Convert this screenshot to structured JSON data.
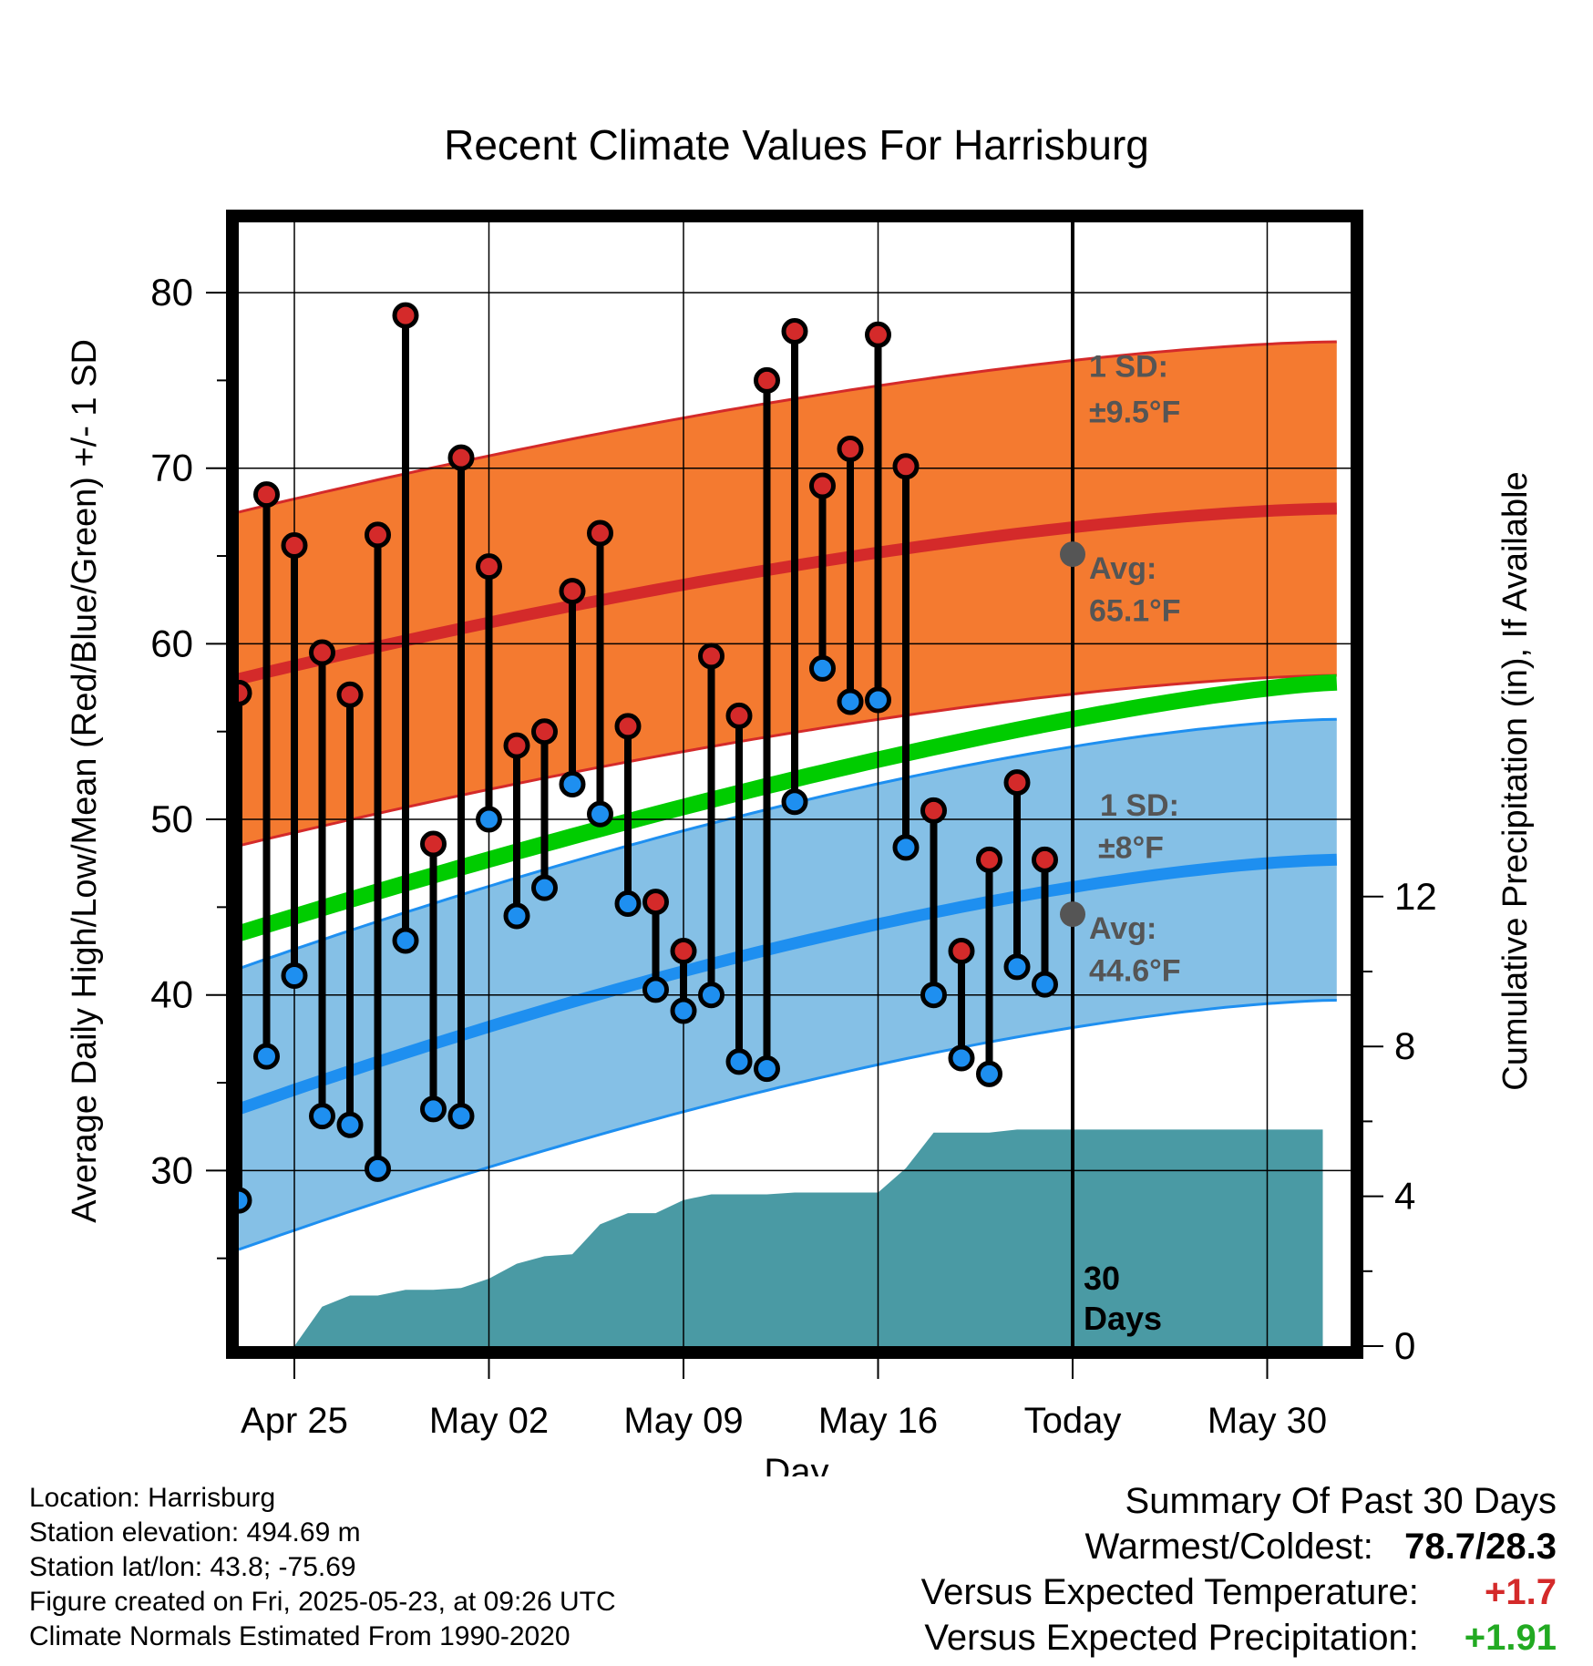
{
  "chart_data": {
    "type": "line",
    "title": "Recent Climate Values For Harrisburg",
    "xlabel": "Day",
    "ylabel": "Average Daily High/Low/Mean (Red/Blue/Green) +/- 1 SD",
    "y2label": "Cumulative Precipitation (in), If Available",
    "ylim": [
      20,
      84
    ],
    "y2lim": [
      0,
      30
    ],
    "yticks": [
      30,
      40,
      50,
      60,
      70,
      80
    ],
    "y2ticks": [
      0,
      4,
      8,
      12
    ],
    "xlim": [
      -2.0,
      38.0
    ],
    "xticks": [
      {
        "day": 0,
        "label": "Apr 25"
      },
      {
        "day": 7,
        "label": "May 02"
      },
      {
        "day": 14,
        "label": "May 09"
      },
      {
        "day": 21,
        "label": "May 16"
      },
      {
        "day": 28,
        "label": "Today"
      },
      {
        "day": 35,
        "label": "May 30"
      }
    ],
    "grid": true,
    "days": [
      -2,
      -1,
      0,
      1,
      2,
      3,
      4,
      5,
      6,
      7,
      8,
      9,
      10,
      11,
      12,
      13,
      14,
      15,
      16,
      17,
      18,
      19,
      20,
      21,
      22,
      23,
      24,
      25,
      26,
      27
    ],
    "daily_high": [
      57.2,
      68.5,
      65.6,
      59.5,
      57.1,
      66.2,
      78.7,
      48.6,
      70.6,
      64.4,
      54.2,
      55.0,
      63.0,
      66.3,
      55.3,
      45.3,
      42.5,
      59.3,
      55.9,
      75.0,
      77.8,
      69.0,
      71.1,
      77.6,
      70.1,
      50.5,
      42.5,
      47.7,
      52.1,
      47.7
    ],
    "daily_low": [
      28.3,
      36.5,
      41.1,
      33.1,
      32.6,
      30.1,
      43.1,
      33.5,
      33.1,
      50.0,
      44.5,
      46.1,
      52.0,
      50.3,
      45.2,
      40.3,
      39.1,
      40.0,
      36.2,
      35.8,
      51.0,
      58.6,
      56.7,
      56.8,
      48.4,
      40.0,
      36.4,
      35.5,
      41.6,
      40.6
    ],
    "normal_high": {
      "start": 58.0,
      "today": 65.1,
      "end": 67.7,
      "sd": 9.5
    },
    "normal_low": {
      "start": 33.5,
      "today": 44.6,
      "end": 47.7,
      "sd": 8.0
    },
    "normal_mean": {
      "start": 43.5,
      "end": 57.8
    },
    "precip_days": [
      -2,
      0,
      1,
      2,
      3,
      4,
      5,
      6,
      7,
      8,
      9,
      10,
      11,
      12,
      13,
      14,
      15,
      16,
      17,
      18,
      19,
      20,
      21,
      22,
      23,
      24,
      25,
      26,
      27,
      28,
      37
    ],
    "cum_precip": [
      0,
      0,
      1.05,
      1.35,
      1.35,
      1.5,
      1.5,
      1.55,
      1.8,
      2.2,
      2.4,
      2.45,
      3.25,
      3.55,
      3.55,
      3.9,
      4.05,
      4.05,
      4.05,
      4.1,
      4.1,
      4.1,
      4.1,
      4.75,
      5.7,
      5.7,
      5.7,
      5.78,
      5.78,
      5.78,
      5.78
    ],
    "annotations": {
      "high_sd_label": "1 SD:",
      "high_sd_value": "±9.5°F",
      "high_avg_label": "Avg:",
      "high_avg_value": "65.1°F",
      "low_sd_label": "1 SD:",
      "low_sd_value": "±8°F",
      "low_avg_label": "Avg:",
      "low_avg_value": "44.6°F",
      "window_line1": "30",
      "window_line2": "Days"
    },
    "colors": {
      "high_band": "#f47a30",
      "high_line": "#d42a2a",
      "low_band": "#85c0e6",
      "low_line": "#1e8ff0",
      "mean_line": "#00cc00",
      "precip": "#4a9aa4",
      "high_dot": "#d42a2a",
      "low_dot": "#1e8ff0",
      "avg_marker": "#555555",
      "annotation_text": "#555555"
    }
  },
  "footer": {
    "location": "Location: Harrisburg",
    "elevation": "Station elevation: 494.69 m",
    "latlon": "Station lat/lon: 43.8; -75.69",
    "created": "Figure created on Fri, 2025-05-23, at 09:26 UTC",
    "normals": "Climate Normals Estimated From 1990-2020"
  },
  "summary": {
    "title": "Summary Of Past 30 Days",
    "warm_cold_label": "Warmest/Coldest:",
    "warm_cold_value": "78.7/28.3",
    "temp_label": "Versus Expected Temperature:",
    "temp_value": "+1.7",
    "precip_label": "Versus Expected Precipitation:",
    "precip_value": "+1.91",
    "temp_color": "#d42a2a",
    "precip_color": "#22aa22"
  }
}
